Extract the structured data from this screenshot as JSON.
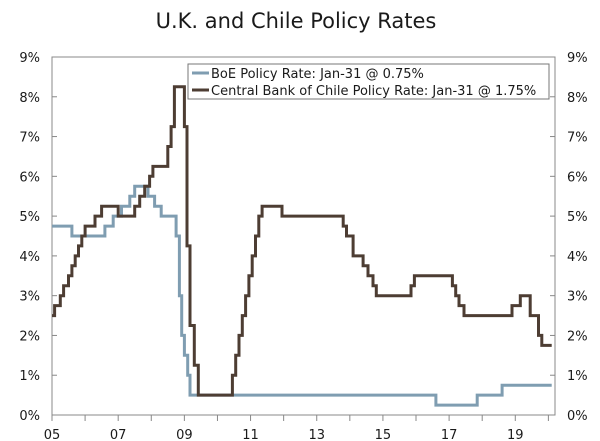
{
  "chart_data": {
    "type": "line",
    "title": "U.K. and Chile Policy Rates",
    "xlabel": "",
    "ylabel": "",
    "xlim": [
      2005.0,
      2020.2
    ],
    "ylim": [
      0,
      9
    ],
    "x_ticks": [
      {
        "value": 2005,
        "label": "05"
      },
      {
        "value": 2007,
        "label": "07"
      },
      {
        "value": 2009,
        "label": "09"
      },
      {
        "value": 2011,
        "label": "11"
      },
      {
        "value": 2013,
        "label": "13"
      },
      {
        "value": 2015,
        "label": "15"
      },
      {
        "value": 2017,
        "label": "17"
      },
      {
        "value": 2019,
        "label": "19"
      }
    ],
    "y_ticks_left": [
      "0%",
      "1%",
      "2%",
      "3%",
      "4%",
      "5%",
      "6%",
      "7%",
      "8%",
      "9%"
    ],
    "y_ticks_right": [
      "0%",
      "1%",
      "2%",
      "3%",
      "4%",
      "5%",
      "6%",
      "7%",
      "8%",
      "9%"
    ],
    "legend_position": "top-right",
    "series": [
      {
        "name": "BoE Policy Rate: Jan-31 @ 0.75%",
        "color": "#7f9db1",
        "step": true,
        "points": [
          [
            2005.0,
            4.75
          ],
          [
            2005.6,
            4.5
          ],
          [
            2006.6,
            4.75
          ],
          [
            2006.85,
            5.0
          ],
          [
            2007.1,
            5.25
          ],
          [
            2007.35,
            5.5
          ],
          [
            2007.5,
            5.75
          ],
          [
            2007.9,
            5.5
          ],
          [
            2008.1,
            5.25
          ],
          [
            2008.3,
            5.0
          ],
          [
            2008.75,
            4.5
          ],
          [
            2008.85,
            3.0
          ],
          [
            2008.92,
            2.0
          ],
          [
            2009.0,
            1.5
          ],
          [
            2009.1,
            1.0
          ],
          [
            2009.17,
            0.5
          ],
          [
            2016.6,
            0.25
          ],
          [
            2017.85,
            0.5
          ],
          [
            2018.6,
            0.75
          ],
          [
            2020.1,
            0.75
          ]
        ]
      },
      {
        "name": "Central Bank of Chile Policy Rate: Jan-31 @ 1.75%",
        "color": "#4d3d33",
        "step": true,
        "points": [
          [
            2005.0,
            2.5
          ],
          [
            2005.08,
            2.75
          ],
          [
            2005.25,
            3.0
          ],
          [
            2005.35,
            3.25
          ],
          [
            2005.5,
            3.5
          ],
          [
            2005.6,
            3.75
          ],
          [
            2005.7,
            4.0
          ],
          [
            2005.8,
            4.25
          ],
          [
            2005.9,
            4.5
          ],
          [
            2006.0,
            4.75
          ],
          [
            2006.3,
            5.0
          ],
          [
            2006.5,
            5.25
          ],
          [
            2007.0,
            5.0
          ],
          [
            2007.5,
            5.25
          ],
          [
            2007.65,
            5.5
          ],
          [
            2007.8,
            5.75
          ],
          [
            2007.95,
            6.0
          ],
          [
            2008.05,
            6.25
          ],
          [
            2008.5,
            6.75
          ],
          [
            2008.6,
            7.25
          ],
          [
            2008.7,
            8.25
          ],
          [
            2009.0,
            7.25
          ],
          [
            2009.08,
            4.25
          ],
          [
            2009.17,
            2.25
          ],
          [
            2009.3,
            1.25
          ],
          [
            2009.42,
            0.5
          ],
          [
            2010.45,
            1.0
          ],
          [
            2010.55,
            1.5
          ],
          [
            2010.65,
            2.0
          ],
          [
            2010.75,
            2.5
          ],
          [
            2010.85,
            3.0
          ],
          [
            2010.95,
            3.5
          ],
          [
            2011.05,
            4.0
          ],
          [
            2011.15,
            4.5
          ],
          [
            2011.25,
            5.0
          ],
          [
            2011.35,
            5.25
          ],
          [
            2011.95,
            5.0
          ],
          [
            2013.8,
            4.75
          ],
          [
            2013.9,
            4.5
          ],
          [
            2014.1,
            4.0
          ],
          [
            2014.4,
            3.75
          ],
          [
            2014.55,
            3.5
          ],
          [
            2014.7,
            3.25
          ],
          [
            2014.8,
            3.0
          ],
          [
            2015.85,
            3.25
          ],
          [
            2015.95,
            3.5
          ],
          [
            2017.1,
            3.25
          ],
          [
            2017.2,
            3.0
          ],
          [
            2017.3,
            2.75
          ],
          [
            2017.45,
            2.5
          ],
          [
            2018.9,
            2.75
          ],
          [
            2019.15,
            3.0
          ],
          [
            2019.45,
            2.5
          ],
          [
            2019.7,
            2.0
          ],
          [
            2019.8,
            1.75
          ],
          [
            2020.1,
            1.75
          ]
        ]
      }
    ]
  }
}
